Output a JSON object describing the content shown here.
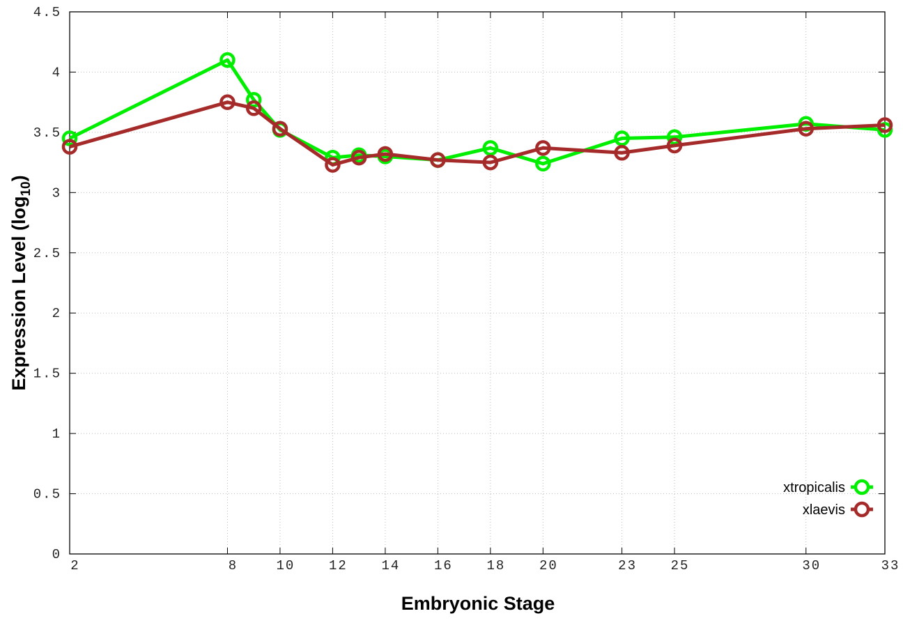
{
  "chart_data": {
    "type": "line",
    "title": "",
    "xlabel": "Embryonic Stage",
    "ylabel": {
      "text": "Expression Level (log",
      "subscript": "10",
      "suffix": ")"
    },
    "x": [
      2,
      8,
      9,
      10,
      12,
      13,
      14,
      16,
      18,
      20,
      23,
      25,
      30,
      33
    ],
    "xticks": [
      2,
      8,
      10,
      12,
      14,
      16,
      18,
      20,
      23,
      25,
      30,
      33
    ],
    "yticks": [
      "0",
      "0.5",
      "1",
      "1.5",
      "2",
      "2.5",
      "3",
      "3.5",
      "4",
      "4.5"
    ],
    "xlim": [
      2,
      33
    ],
    "ylim": [
      0,
      4.5
    ],
    "grid": true,
    "legend_position": "bottom-right",
    "series": [
      {
        "name": "xtropicalis",
        "color": "#00ee00",
        "values": [
          3.45,
          4.1,
          3.77,
          3.52,
          3.29,
          3.31,
          3.3,
          3.27,
          3.37,
          3.24,
          3.45,
          3.46,
          3.57,
          3.52
        ]
      },
      {
        "name": "xlaevis",
        "color": "#a52a2a",
        "values": [
          3.38,
          3.75,
          3.7,
          3.53,
          3.23,
          3.29,
          3.32,
          3.27,
          3.25,
          3.37,
          3.33,
          3.39,
          3.53,
          3.56
        ]
      }
    ]
  }
}
